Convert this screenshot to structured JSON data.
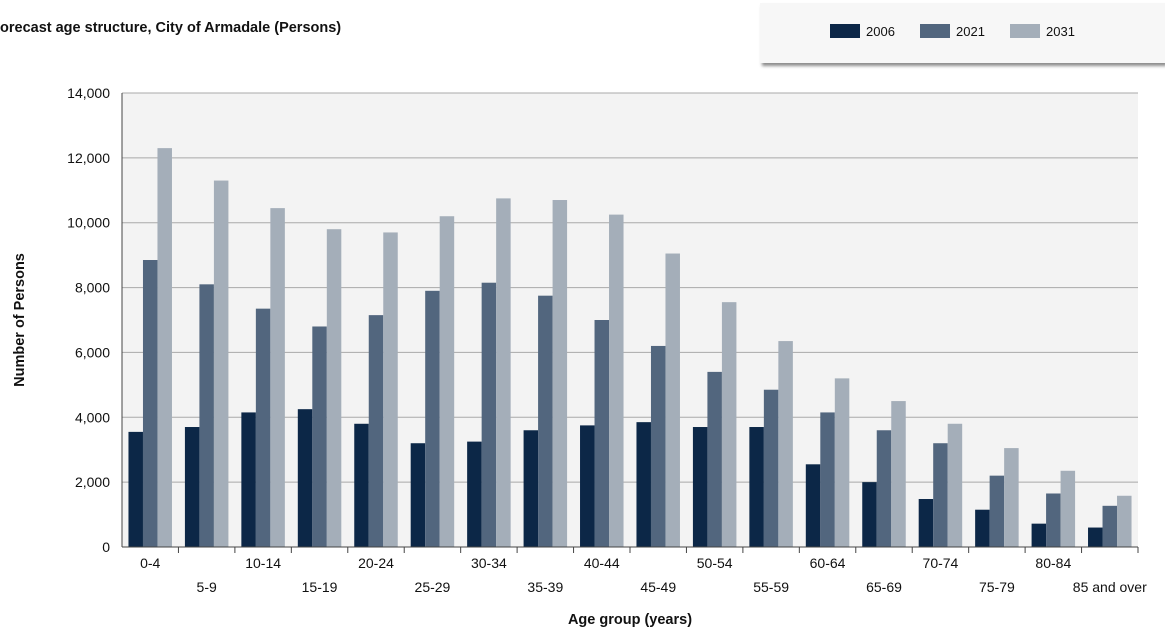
{
  "chart_data": {
    "type": "bar",
    "title": "orecast age structure, City of Armadale (Persons)",
    "xlabel": "Age group (years)",
    "ylabel": "Number of Persons",
    "ylim": [
      0,
      14000
    ],
    "yticks": [
      0,
      2000,
      4000,
      6000,
      8000,
      10000,
      12000,
      14000
    ],
    "ytick_labels": [
      "0",
      "2,000",
      "4,000",
      "6,000",
      "8,000",
      "10,000",
      "12,000",
      "14,000"
    ],
    "grid": true,
    "legend_position": "top-right",
    "categories": [
      "0-4",
      "5-9",
      "10-14",
      "15-19",
      "20-24",
      "25-29",
      "30-34",
      "35-39",
      "40-44",
      "45-49",
      "50-54",
      "55-59",
      "60-64",
      "65-69",
      "70-74",
      "75-79",
      "80-84",
      "85 and over"
    ],
    "series": [
      {
        "name": "2006",
        "color": "#0c2747",
        "values": [
          3550,
          3700,
          4150,
          4250,
          3800,
          3200,
          3250,
          3600,
          3750,
          3850,
          3700,
          3700,
          2550,
          2000,
          1480,
          1150,
          720,
          600
        ]
      },
      {
        "name": "2021",
        "color": "#52667e",
        "values": [
          8850,
          8100,
          7350,
          6800,
          7150,
          7900,
          8150,
          7750,
          7000,
          6200,
          5400,
          4850,
          4150,
          3600,
          3200,
          2200,
          1650,
          1270
        ]
      },
      {
        "name": "2031",
        "color": "#a4aeb9",
        "values": [
          12300,
          11300,
          10450,
          9800,
          9700,
          10200,
          10750,
          10700,
          10250,
          9050,
          7550,
          6350,
          5200,
          4500,
          3800,
          3050,
          2350,
          1580
        ]
      }
    ]
  }
}
